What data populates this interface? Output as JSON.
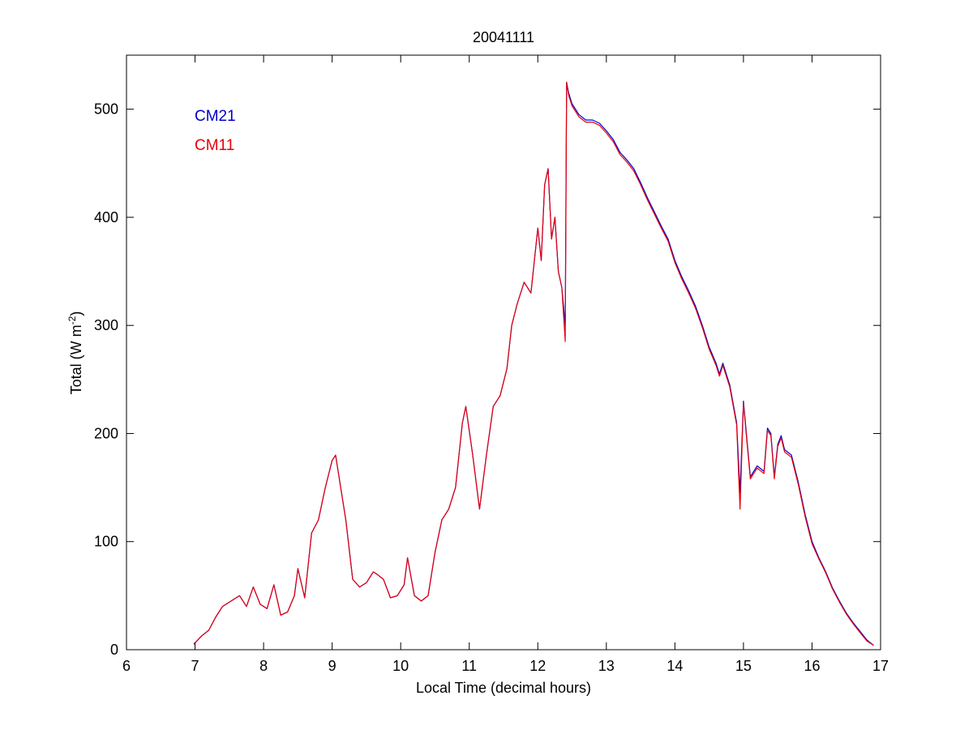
{
  "chart_data": {
    "type": "line",
    "title": "20041111",
    "xlabel": "Local Time (decimal hours)",
    "ylabel": {
      "main": "Total (W m",
      "sup": "-2",
      "close": ")"
    },
    "xlim": [
      6,
      17
    ],
    "ylim": [
      0,
      550
    ],
    "x_ticks": [
      6,
      7,
      8,
      9,
      10,
      11,
      12,
      13,
      14,
      15,
      16,
      17
    ],
    "y_ticks": [
      0,
      100,
      200,
      300,
      400,
      500
    ],
    "grid": false,
    "legend": {
      "placement": "top-left"
    },
    "series": [
      {
        "name": "CM21",
        "color": "#0000cc",
        "x": [
          6.98,
          7.1,
          7.2,
          7.3,
          7.4,
          7.5,
          7.6,
          7.65,
          7.75,
          7.85,
          7.95,
          8.05,
          8.15,
          8.25,
          8.35,
          8.45,
          8.5,
          8.6,
          8.7,
          8.8,
          8.9,
          9.0,
          9.05,
          9.1,
          9.2,
          9.3,
          9.4,
          9.5,
          9.6,
          9.65,
          9.75,
          9.85,
          9.95,
          10.05,
          10.1,
          10.2,
          10.3,
          10.4,
          10.5,
          10.6,
          10.7,
          10.8,
          10.9,
          10.95,
          11.05,
          11.15,
          11.25,
          11.35,
          11.45,
          11.55,
          11.62,
          11.7,
          11.8,
          11.9,
          12.0,
          12.05,
          12.1,
          12.15,
          12.2,
          12.25,
          12.3,
          12.35,
          12.4,
          12.42,
          12.45,
          12.5,
          12.6,
          12.7,
          12.8,
          12.9,
          13.0,
          13.1,
          13.2,
          13.3,
          13.4,
          13.5,
          13.6,
          13.7,
          13.8,
          13.9,
          14.0,
          14.1,
          14.2,
          14.3,
          14.4,
          14.5,
          14.6,
          14.65,
          14.7,
          14.8,
          14.9,
          14.95,
          15.0,
          15.05,
          15.1,
          15.2,
          15.3,
          15.35,
          15.4,
          15.45,
          15.5,
          15.55,
          15.6,
          15.7,
          15.8,
          15.9,
          16.0,
          16.1,
          16.2,
          16.3,
          16.4,
          16.5,
          16.6,
          16.7,
          16.8,
          16.9
        ],
        "y": [
          5,
          13,
          18,
          30,
          40,
          44,
          48,
          50,
          40,
          58,
          42,
          38,
          60,
          32,
          35,
          50,
          75,
          48,
          108,
          120,
          150,
          175,
          180,
          160,
          120,
          65,
          58,
          62,
          72,
          70,
          65,
          48,
          50,
          60,
          85,
          50,
          45,
          50,
          90,
          120,
          130,
          150,
          210,
          225,
          180,
          130,
          180,
          225,
          235,
          260,
          300,
          320,
          340,
          330,
          390,
          360,
          430,
          445,
          380,
          400,
          350,
          335,
          300,
          525,
          515,
          505,
          495,
          490,
          490,
          487,
          480,
          472,
          460,
          453,
          445,
          432,
          418,
          405,
          392,
          380,
          360,
          345,
          332,
          318,
          300,
          280,
          265,
          255,
          265,
          245,
          210,
          145,
          230,
          195,
          160,
          170,
          165,
          205,
          200,
          160,
          190,
          198,
          185,
          180,
          155,
          125,
          100,
          85,
          72,
          57,
          45,
          34,
          25,
          17,
          9,
          4
        ]
      },
      {
        "name": "CM11",
        "color": "#e8000b",
        "x": [
          6.98,
          7.1,
          7.2,
          7.3,
          7.4,
          7.5,
          7.6,
          7.65,
          7.75,
          7.85,
          7.95,
          8.05,
          8.15,
          8.25,
          8.35,
          8.45,
          8.5,
          8.6,
          8.7,
          8.8,
          8.9,
          9.0,
          9.05,
          9.1,
          9.2,
          9.3,
          9.4,
          9.5,
          9.6,
          9.65,
          9.75,
          9.85,
          9.95,
          10.05,
          10.1,
          10.2,
          10.3,
          10.4,
          10.5,
          10.6,
          10.7,
          10.8,
          10.9,
          10.95,
          11.05,
          11.15,
          11.25,
          11.35,
          11.45,
          11.55,
          11.62,
          11.7,
          11.8,
          11.9,
          12.0,
          12.05,
          12.1,
          12.15,
          12.2,
          12.25,
          12.3,
          12.35,
          12.4,
          12.42,
          12.45,
          12.5,
          12.6,
          12.7,
          12.8,
          12.9,
          13.0,
          13.1,
          13.2,
          13.3,
          13.4,
          13.5,
          13.6,
          13.7,
          13.8,
          13.9,
          14.0,
          14.1,
          14.2,
          14.3,
          14.4,
          14.5,
          14.6,
          14.65,
          14.7,
          14.8,
          14.9,
          14.95,
          15.0,
          15.05,
          15.1,
          15.2,
          15.3,
          15.35,
          15.4,
          15.45,
          15.5,
          15.55,
          15.6,
          15.7,
          15.8,
          15.9,
          16.0,
          16.1,
          16.2,
          16.3,
          16.4,
          16.5,
          16.6,
          16.7,
          16.8,
          16.9
        ],
        "y": [
          5,
          13,
          18,
          30,
          40,
          44,
          48,
          50,
          40,
          58,
          42,
          38,
          60,
          32,
          35,
          50,
          75,
          48,
          108,
          120,
          150,
          175,
          180,
          160,
          120,
          65,
          58,
          62,
          72,
          70,
          65,
          48,
          50,
          60,
          85,
          50,
          45,
          50,
          90,
          120,
          130,
          150,
          210,
          225,
          180,
          130,
          180,
          225,
          235,
          260,
          300,
          320,
          340,
          330,
          390,
          360,
          430,
          445,
          380,
          400,
          350,
          335,
          285,
          525,
          513,
          503,
          493,
          488,
          488,
          485,
          478,
          470,
          458,
          451,
          443,
          430,
          416,
          403,
          390,
          378,
          358,
          343,
          330,
          316,
          298,
          278,
          263,
          253,
          263,
          243,
          208,
          130,
          228,
          193,
          158,
          168,
          163,
          203,
          198,
          158,
          188,
          196,
          183,
          178,
          153,
          123,
          98,
          84,
          71,
          56,
          44,
          33,
          24,
          16,
          8,
          4
        ]
      }
    ]
  }
}
